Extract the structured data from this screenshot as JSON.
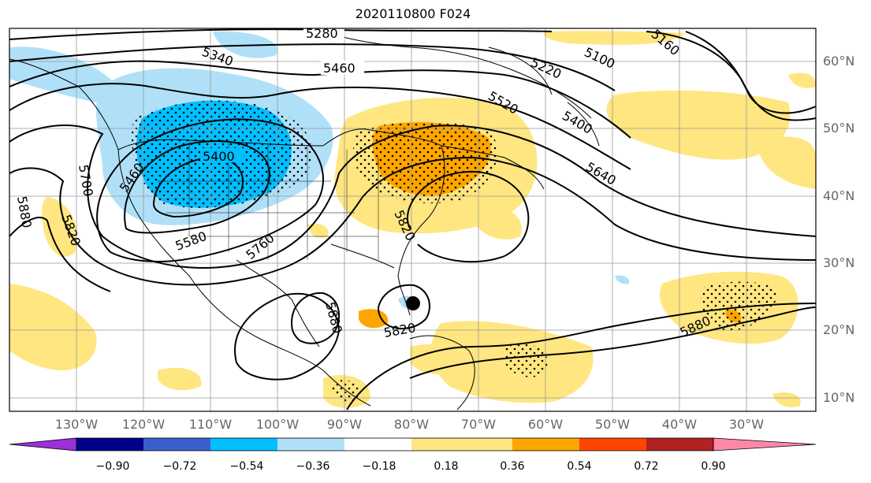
{
  "title": "2020110800 F024",
  "lat_labels": [
    "60°N",
    "50°N",
    "40°N",
    "30°N",
    "20°N",
    "10°N"
  ],
  "lon_labels": [
    "130°W",
    "120°W",
    "110°W",
    "100°W",
    "90°W",
    "80°W",
    "70°W",
    "60°W",
    "50°W",
    "40°W",
    "30°W"
  ],
  "contour_labels": [
    "5280",
    "5340",
    "5460",
    "5220",
    "5100",
    "5160",
    "5520",
    "5400",
    "5640",
    "5400",
    "5460",
    "5700",
    "5880",
    "5820",
    "5580",
    "5760",
    "5880",
    "5820",
    "5880",
    "5820"
  ],
  "colorbar": {
    "ticks": [
      "−0.90",
      "−0.72",
      "−0.54",
      "−0.36",
      "−0.18",
      "0.18",
      "0.36",
      "0.54",
      "0.72",
      "0.90"
    ],
    "colors": [
      "#9b30d9",
      "#00008b",
      "#3a5fcd",
      "#00bfff",
      "#b0e0f8",
      "#ffffff",
      "#ffe680",
      "#ffa500",
      "#ff4500",
      "#b22222",
      "#ff88aa"
    ]
  }
}
